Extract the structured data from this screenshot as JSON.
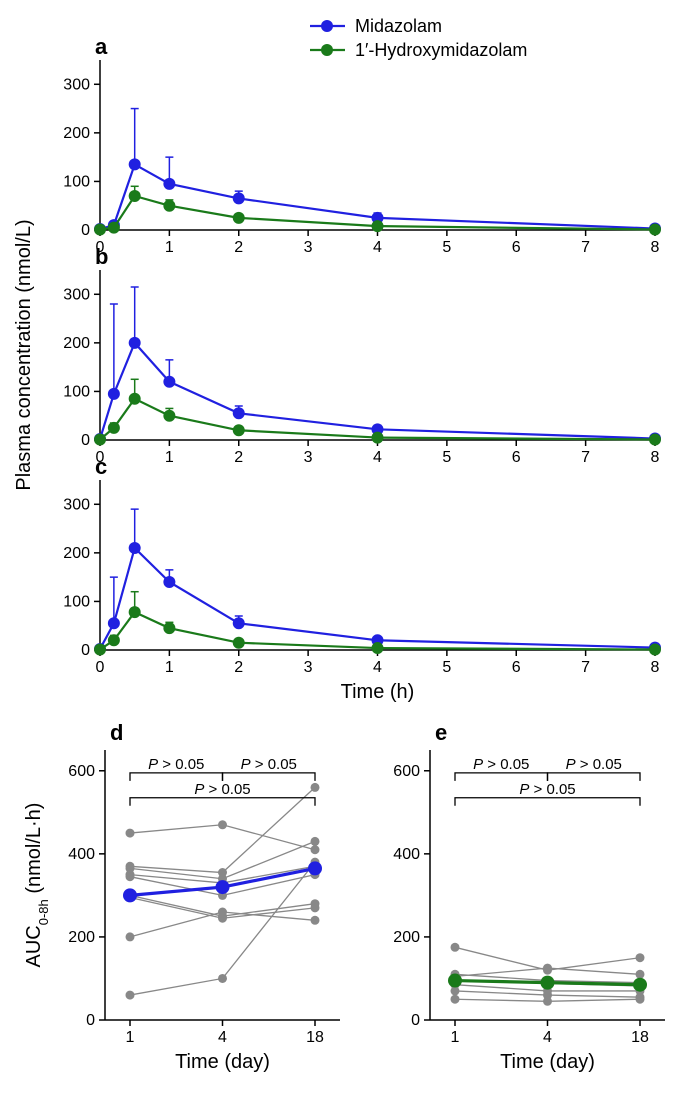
{
  "legend": {
    "items": [
      {
        "label": "Midazolam",
        "color": "#2020e0"
      },
      {
        "label": "1′-Hydroxymidazolam",
        "color": "#1a7a1a"
      }
    ]
  },
  "timecourse_common": {
    "type": "line",
    "xlabel": "Time (h)",
    "shared_ylabel": "Plasma concentration (nmol/L)",
    "xticks": [
      0,
      1,
      2,
      3,
      4,
      5,
      6,
      7,
      8
    ],
    "yticks": [
      0,
      100,
      200,
      300
    ],
    "xlim": [
      0,
      8
    ],
    "ylim": [
      0,
      350
    ],
    "marker_size": 6,
    "line_width": 2.2,
    "error_cap": 4,
    "background_color": "#ffffff",
    "axis_color": "#000000",
    "label_fontsize": 16,
    "title_fontsize": 20
  },
  "panel_a": {
    "label": "a",
    "x": [
      0,
      0.2,
      0.5,
      1,
      2,
      4,
      8
    ],
    "series": [
      {
        "key": "midazolam",
        "color": "#2020e0",
        "y": [
          2,
          10,
          135,
          95,
          65,
          25,
          3
        ],
        "err": [
          0,
          5,
          115,
          55,
          15,
          10,
          2
        ]
      },
      {
        "key": "hydroxy",
        "color": "#1a7a1a",
        "y": [
          1,
          5,
          70,
          50,
          25,
          8,
          1
        ],
        "err": [
          0,
          3,
          20,
          12,
          6,
          3,
          1
        ]
      }
    ]
  },
  "panel_b": {
    "label": "b",
    "x": [
      0,
      0.2,
      0.5,
      1,
      2,
      4,
      8
    ],
    "series": [
      {
        "key": "midazolam",
        "color": "#2020e0",
        "y": [
          2,
          95,
          200,
          120,
          55,
          22,
          3
        ],
        "err": [
          0,
          185,
          115,
          45,
          15,
          8,
          2
        ]
      },
      {
        "key": "hydroxy",
        "color": "#1a7a1a",
        "y": [
          1,
          25,
          85,
          50,
          20,
          5,
          1
        ],
        "err": [
          0,
          10,
          40,
          15,
          6,
          3,
          1
        ]
      }
    ]
  },
  "panel_c": {
    "label": "c",
    "x": [
      0,
      0.2,
      0.5,
      1,
      2,
      4,
      8
    ],
    "series": [
      {
        "key": "midazolam",
        "color": "#2020e0",
        "y": [
          2,
          55,
          210,
          140,
          55,
          20,
          5
        ],
        "err": [
          0,
          95,
          80,
          25,
          15,
          6,
          2
        ]
      },
      {
        "key": "hydroxy",
        "color": "#1a7a1a",
        "y": [
          1,
          20,
          78,
          45,
          15,
          4,
          1
        ],
        "err": [
          0,
          10,
          42,
          12,
          5,
          2,
          1
        ]
      }
    ]
  },
  "auc_common": {
    "type": "line",
    "xlabel": "Time (day)",
    "ylabel": "AUC",
    "ylabel_sub": "0-8h",
    "ylabel_unit": " (nmol/L·h)",
    "xticks": [
      1,
      4,
      18
    ],
    "yticks": [
      0,
      200,
      400,
      600
    ],
    "xlim": [
      0.5,
      18.5
    ],
    "ylim": [
      0,
      650
    ],
    "grey_color": "#888888",
    "grey_line_width": 1.3,
    "grey_marker_size": 4.5,
    "main_line_width": 3.2,
    "main_marker_size": 7,
    "bracket_color": "#000000",
    "stat_text": "P > 0.05"
  },
  "panel_d": {
    "label": "d",
    "main_color": "#2020e0",
    "x": [
      1,
      4,
      18
    ],
    "main_y": [
      300,
      320,
      365
    ],
    "subjects": [
      [
        450,
        470,
        410
      ],
      [
        370,
        355,
        560
      ],
      [
        365,
        340,
        430
      ],
      [
        350,
        330,
        370
      ],
      [
        345,
        300,
        350
      ],
      [
        300,
        250,
        280
      ],
      [
        295,
        245,
        270
      ],
      [
        200,
        260,
        240
      ],
      [
        60,
        100,
        380
      ]
    ],
    "brackets": [
      {
        "from": 1,
        "to": 4,
        "y": 595,
        "label": "P > 0.05"
      },
      {
        "from": 4,
        "to": 18,
        "y": 595,
        "label": "P > 0.05"
      },
      {
        "from": 1,
        "to": 18,
        "y": 535,
        "label": "P > 0.05"
      }
    ]
  },
  "panel_e": {
    "label": "e",
    "main_color": "#1a7a1a",
    "x": [
      1,
      4,
      18
    ],
    "main_y": [
      95,
      90,
      85
    ],
    "subjects": [
      [
        175,
        120,
        150
      ],
      [
        105,
        125,
        110
      ],
      [
        110,
        95,
        90
      ],
      [
        95,
        88,
        82
      ],
      [
        85,
        70,
        70
      ],
      [
        70,
        60,
        55
      ],
      [
        50,
        45,
        50
      ]
    ],
    "brackets": [
      {
        "from": 1,
        "to": 4,
        "y": 595,
        "label": "P > 0.05"
      },
      {
        "from": 4,
        "to": 18,
        "y": 595,
        "label": "P > 0.05"
      },
      {
        "from": 1,
        "to": 18,
        "y": 535,
        "label": "P > 0.05"
      }
    ]
  }
}
